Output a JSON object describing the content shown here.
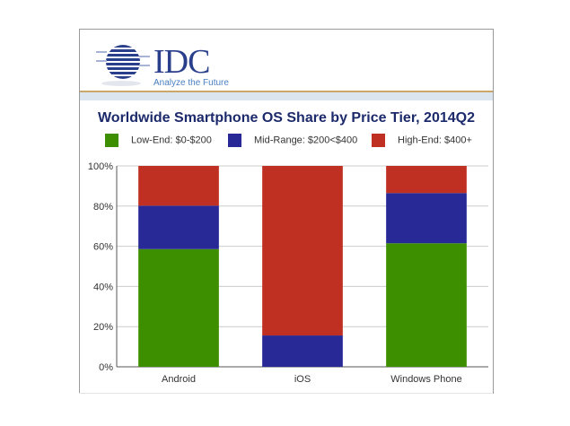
{
  "logo": {
    "text": "IDC",
    "tagline": "Analyze the Future"
  },
  "colors": {
    "low": "#3d8f00",
    "mid": "#282896",
    "high": "#c03022",
    "grid": "#cccccc",
    "title": "#1c2a6b"
  },
  "chart_data": {
    "type": "bar",
    "stacked": true,
    "title": "Worldwide Smartphone OS Share by Price Tier, 2014Q2",
    "categories": [
      "Android",
      "iOS",
      "Windows Phone"
    ],
    "series": [
      {
        "name": "Low-End: $0-$200",
        "values": [
          58.6,
          0,
          61.5
        ]
      },
      {
        "name": "Mid-Range: $200<$400",
        "values": [
          21.6,
          15.6,
          25.0
        ]
      },
      {
        "name": "High-End: $400+",
        "values": [
          19.8,
          84.4,
          13.5
        ]
      }
    ],
    "ylim": [
      0,
      100
    ],
    "yticks": [
      "0%",
      "20%",
      "40%",
      "60%",
      "80%",
      "100%"
    ],
    "grid": true,
    "legend": "top"
  }
}
